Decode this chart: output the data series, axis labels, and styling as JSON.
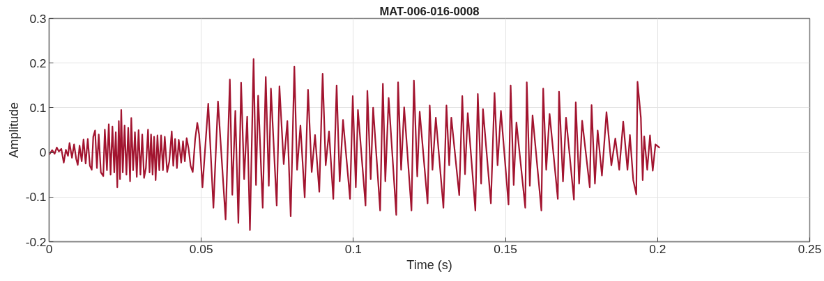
{
  "chart_data": {
    "type": "line",
    "title": "MAT-006-016-0008",
    "xlabel": "Time (s)",
    "ylabel": "Amplitude",
    "xlim": [
      0,
      0.25
    ],
    "ylim": [
      -0.2,
      0.3
    ],
    "xticks": [
      0,
      0.05,
      0.1,
      0.15,
      0.2,
      0.25
    ],
    "yticks": [
      -0.2,
      -0.1,
      0,
      0.1,
      0.2,
      0.3
    ],
    "grid": true,
    "marker": "none",
    "line_style": "solid",
    "series": [
      {
        "color": "#a2142f",
        "x": [
          0,
          0.001,
          0.0018,
          0.0025,
          0.0032,
          0.004,
          0.0048,
          0.0055,
          0.0062,
          0.0067,
          0.0075,
          0.0082,
          0.0089,
          0.0094,
          0.01,
          0.0107,
          0.0113,
          0.012,
          0.0127,
          0.0134,
          0.014,
          0.0145,
          0.0151,
          0.0157,
          0.0163,
          0.017,
          0.0178,
          0.0183,
          0.019,
          0.0196,
          0.0202,
          0.0208,
          0.0214,
          0.0219,
          0.0224,
          0.0229,
          0.0233,
          0.0237,
          0.0242,
          0.0248,
          0.0254,
          0.026,
          0.0266,
          0.027,
          0.0276,
          0.0282,
          0.0288,
          0.0294,
          0.03,
          0.0306,
          0.0312,
          0.0318,
          0.0325,
          0.033,
          0.0335,
          0.034,
          0.0345,
          0.035,
          0.0356,
          0.0362,
          0.0368,
          0.0374,
          0.038,
          0.0388,
          0.0395,
          0.0403,
          0.0408,
          0.0414,
          0.042,
          0.0426,
          0.0434,
          0.044,
          0.0446,
          0.0452,
          0.0458,
          0.0465,
          0.0472,
          0.048,
          0.0487,
          0.0493,
          0.0498,
          0.0504,
          0.0523,
          0.054,
          0.0555,
          0.058,
          0.0594,
          0.0602,
          0.0612,
          0.0622,
          0.0631,
          0.0641,
          0.0651,
          0.066,
          0.0672,
          0.068,
          0.0687,
          0.0702,
          0.0712,
          0.0722,
          0.0729,
          0.0748,
          0.0757,
          0.0771,
          0.0783,
          0.0794,
          0.0806,
          0.0815,
          0.0826,
          0.084,
          0.0851,
          0.0863,
          0.0874,
          0.0888,
          0.0899,
          0.0909,
          0.092,
          0.0934,
          0.0945,
          0.0955,
          0.0966,
          0.0989,
          0.0998,
          0.1008,
          0.1015,
          0.104,
          0.1046,
          0.1057,
          0.1065,
          0.1088,
          0.1097,
          0.1105,
          0.1116,
          0.1141,
          0.1147,
          0.1157,
          0.1167,
          0.1191,
          0.1199,
          0.121,
          0.1218,
          0.1244,
          0.1251,
          0.126,
          0.1271,
          0.1296,
          0.1306,
          0.1315,
          0.1322,
          0.1348,
          0.1358,
          0.1367,
          0.1376,
          0.1401,
          0.1409,
          0.142,
          0.1426,
          0.1452,
          0.1464,
          0.1474,
          0.1485,
          0.151,
          0.1517,
          0.1527,
          0.1536,
          0.1565,
          0.157,
          0.158,
          0.1589,
          0.1618,
          0.1624,
          0.1634,
          0.1645,
          0.1672,
          0.1676,
          0.1689,
          0.1699,
          0.1725,
          0.1731,
          0.1742,
          0.1752,
          0.1777,
          0.1783,
          0.1794,
          0.1803,
          0.1817,
          0.1832,
          0.1848,
          0.1861,
          0.1874,
          0.1887,
          0.1901,
          0.1909,
          0.192,
          0.193,
          0.1934,
          0.1945,
          0.1951,
          0.1956,
          0.1966,
          0.1975,
          0.1984,
          0.1993,
          0.2007
        ],
        "values": [
          -0.005,
          0.005,
          -0.003,
          0.011,
          0.002,
          0.008,
          -0.023,
          0.006,
          -0.008,
          0.021,
          -0.012,
          0.018,
          -0.015,
          -0.028,
          0.015,
          -0.02,
          0.029,
          -0.025,
          0.03,
          -0.03,
          -0.039,
          0.035,
          0.049,
          -0.035,
          0.04,
          -0.045,
          -0.053,
          0.051,
          -0.04,
          0.063,
          -0.05,
          0.058,
          -0.045,
          0.045,
          -0.078,
          0.07,
          -0.06,
          0.095,
          -0.045,
          0.06,
          -0.05,
          0.055,
          -0.065,
          0.077,
          -0.04,
          0.045,
          -0.055,
          0.05,
          -0.05,
          0.04,
          -0.057,
          -0.035,
          0.051,
          -0.045,
          0.04,
          -0.05,
          0.035,
          -0.062,
          0.038,
          -0.04,
          0.038,
          -0.04,
          0.035,
          -0.044,
          -0.02,
          0.047,
          -0.03,
          0.03,
          -0.035,
          0.028,
          -0.023,
          0.025,
          -0.02,
          0.032,
          0.01,
          -0.03,
          -0.044,
          0.03,
          0.066,
          0.04,
          -0.01,
          -0.078,
          0.109,
          -0.124,
          0.114,
          -0.15,
          0.163,
          -0.095,
          0.093,
          -0.158,
          0.156,
          -0.06,
          0.08,
          -0.174,
          0.209,
          -0.073,
          0.127,
          -0.124,
          0.169,
          -0.075,
          0.143,
          -0.119,
          0.148,
          -0.026,
          0.07,
          -0.143,
          0.192,
          -0.039,
          0.06,
          -0.101,
          0.14,
          -0.044,
          0.039,
          -0.088,
          0.176,
          -0.029,
          0.047,
          -0.104,
          0.15,
          -0.065,
          0.073,
          -0.104,
          0.126,
          -0.078,
          0.095,
          -0.119,
          0.138,
          -0.06,
          0.1,
          -0.13,
          0.154,
          -0.065,
          0.122,
          -0.14,
          0.157,
          -0.039,
          0.101,
          -0.13,
          0.161,
          -0.054,
          0.091,
          -0.114,
          0.105,
          -0.039,
          0.078,
          -0.124,
          0.105,
          -0.029,
          0.078,
          -0.096,
          0.126,
          -0.049,
          0.088,
          -0.13,
          0.131,
          -0.07,
          0.097,
          -0.114,
          0.133,
          -0.029,
          0.093,
          -0.117,
          0.15,
          -0.073,
          0.067,
          -0.124,
          0.157,
          -0.075,
          0.083,
          -0.13,
          0.143,
          -0.039,
          0.086,
          -0.104,
          0.136,
          -0.065,
          0.078,
          -0.106,
          0.112,
          -0.07,
          0.071,
          -0.078,
          0.106,
          -0.07,
          0.049,
          -0.052,
          0.09,
          -0.029,
          0.031,
          -0.039,
          0.069,
          -0.039,
          0.039,
          -0.062,
          -0.094,
          0.158,
          0.078,
          -0.062,
          0.036,
          -0.039,
          0.038,
          -0.041,
          0.018,
          0.01
        ]
      }
    ]
  }
}
